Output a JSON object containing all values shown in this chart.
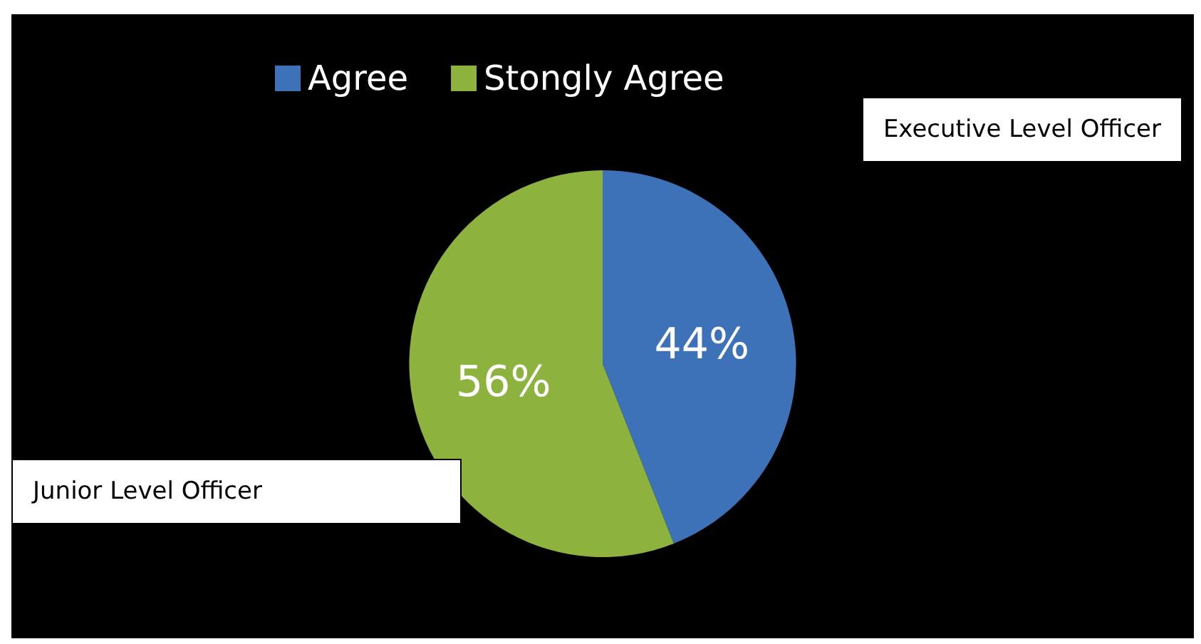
{
  "chart_data": {
    "type": "pie",
    "categories": [
      "Agree",
      "Stongly Agree"
    ],
    "values": [
      44,
      56
    ],
    "colors": [
      "#3d72b9",
      "#8db23e"
    ],
    "value_labels": [
      "44%",
      "56%"
    ],
    "legend": "top",
    "annotations": [
      "Executive Level Officer",
      "Junior Level Officer"
    ]
  }
}
